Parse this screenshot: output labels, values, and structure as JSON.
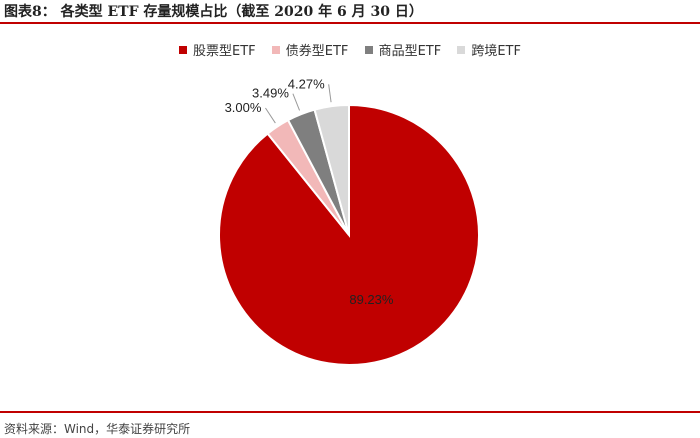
{
  "header": {
    "title": "图表8：  各类型 ETF 存量规模占比（截至 2020 年 6 月 30 日）"
  },
  "footer": {
    "source": "资料来源：Wind，华泰证券研究所"
  },
  "colors": {
    "rule": "#c00000"
  },
  "chart_data": {
    "type": "pie",
    "title": "",
    "legend_position": "top",
    "categories": [
      "股票型ETF",
      "债券型ETF",
      "商品型ETF",
      "跨境ETF"
    ],
    "values": [
      89.23,
      3.0,
      3.49,
      4.27
    ],
    "value_labels": [
      "89.23%",
      "3.00%",
      "3.49%",
      "4.27%"
    ],
    "colors": [
      "#c00000",
      "#f2b8b8",
      "#7f7f7f",
      "#d9d9d9"
    ],
    "start_angle_deg": 0,
    "direction": "clockwise"
  }
}
